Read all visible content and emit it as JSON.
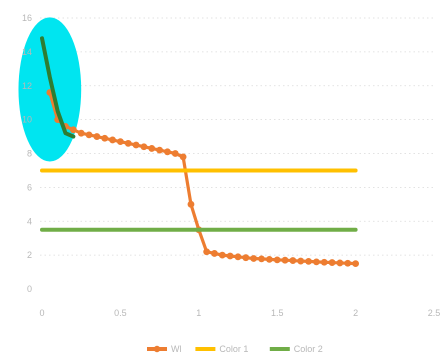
{
  "chart_data": {
    "type": "scatter",
    "title": "",
    "xlabel": "",
    "ylabel": "",
    "xlim": [
      0,
      2.5
    ],
    "ylim": [
      0,
      16
    ],
    "x_ticks": [
      0,
      0.5,
      1,
      1.5,
      2,
      2.5
    ],
    "x_tick_labels": [
      "0",
      "0.5",
      "1",
      "1.5",
      "2",
      "2.5"
    ],
    "y_ticks": [
      0,
      2,
      4,
      6,
      8,
      10,
      12,
      14,
      16
    ],
    "y_tick_labels": [
      "0",
      "2",
      "4",
      "6",
      "8",
      "10",
      "12",
      "14",
      "16"
    ],
    "grid": "horizontal-dotted",
    "legend_position": "bottom",
    "highlight": {
      "color": "#00e5f0",
      "x_range": [
        -0.15,
        0.25
      ],
      "y_range": [
        8,
        15.8
      ]
    },
    "series": [
      {
        "name": "Wl",
        "color": "#ed7d31",
        "marker": "circle",
        "x": [
          0.05,
          0.1,
          0.15,
          0.2,
          0.25,
          0.3,
          0.35,
          0.4,
          0.45,
          0.5,
          0.55,
          0.6,
          0.65,
          0.7,
          0.75,
          0.8,
          0.85,
          0.9,
          0.95,
          1.0,
          1.05,
          1.1,
          1.15,
          1.2,
          1.25,
          1.3,
          1.35,
          1.4,
          1.45,
          1.5,
          1.55,
          1.6,
          1.65,
          1.7,
          1.75,
          1.8,
          1.85,
          1.9,
          1.95,
          2.0
        ],
        "y": [
          11.6,
          10.0,
          9.6,
          9.4,
          9.2,
          9.1,
          9.0,
          8.9,
          8.8,
          8.7,
          8.6,
          8.5,
          8.4,
          8.3,
          8.2,
          8.1,
          8.0,
          7.8,
          5.0,
          3.5,
          2.2,
          2.1,
          2.0,
          1.95,
          1.9,
          1.85,
          1.8,
          1.78,
          1.75,
          1.72,
          1.7,
          1.68,
          1.65,
          1.63,
          1.6,
          1.58,
          1.56,
          1.54,
          1.52,
          1.5
        ]
      },
      {
        "name": "Color 1",
        "color": "#ffc000",
        "marker": "none",
        "x": [
          0,
          2
        ],
        "y": [
          7,
          7
        ]
      },
      {
        "name": "Color 2",
        "color": "#70ad47",
        "marker": "none",
        "x": [
          0,
          2
        ],
        "y": [
          3.5,
          3.5
        ]
      },
      {
        "name": "",
        "color": "#2e7d32",
        "marker": "none",
        "x": [
          0.0,
          0.05,
          0.1,
          0.15,
          0.2
        ],
        "y": [
          14.8,
          12.5,
          10.5,
          9.2,
          9.0
        ]
      }
    ]
  }
}
